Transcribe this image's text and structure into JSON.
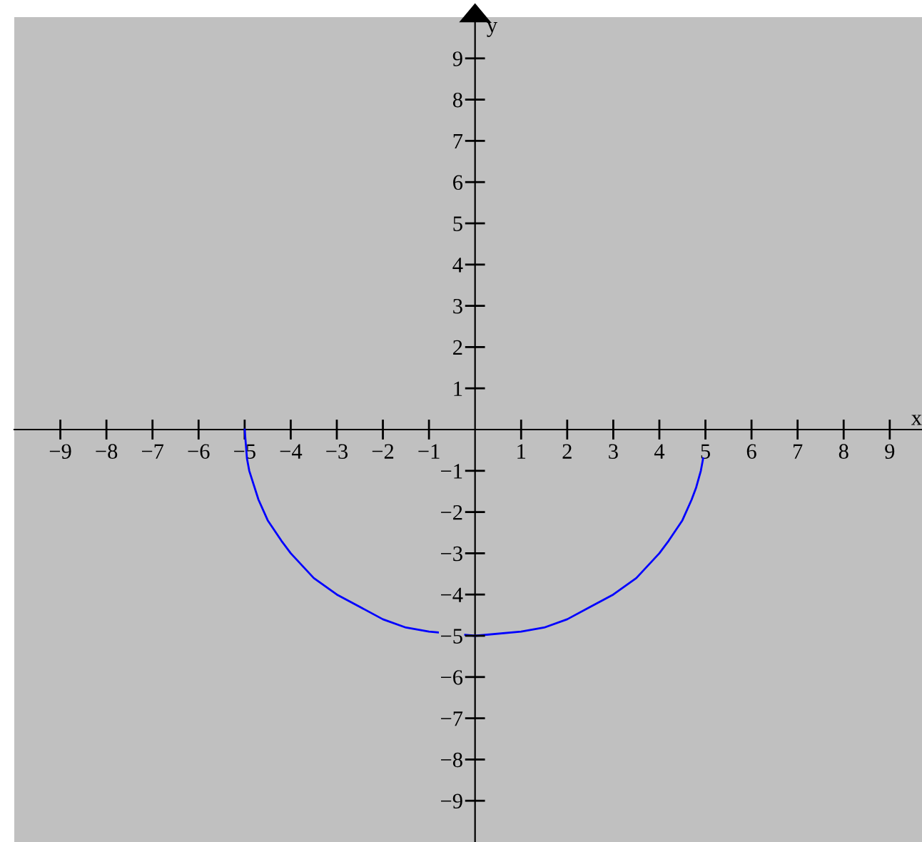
{
  "chart_data": {
    "type": "line",
    "xlabel": "x",
    "ylabel": "y",
    "series": [
      {
        "color": "#0000ff",
        "x": [
          -5,
          -4.95,
          -4.9,
          -4.7,
          -4.5,
          -4.2,
          -4,
          -3.5,
          -3,
          -2.5,
          -2,
          -1.5,
          -1,
          0,
          1,
          1.5,
          2,
          2.5,
          3,
          3.5,
          4,
          4.2,
          4.5,
          4.7,
          4.8,
          4.9,
          4.95
        ],
        "values": [
          0,
          -0.7,
          -1.0,
          -1.7,
          -2.2,
          -2.7,
          -3,
          -3.6,
          -4,
          -4.3,
          -4.6,
          -4.8,
          -4.9,
          -5,
          -4.9,
          -4.8,
          -4.6,
          -4.3,
          -4,
          -3.6,
          -3,
          -2.7,
          -2.2,
          -1.7,
          -1.4,
          -1.0,
          -0.7
        ]
      }
    ],
    "xlim": [
      -10,
      9.7
    ],
    "ylim": [
      -10,
      10
    ],
    "xticks": [
      {
        "value": -9,
        "label": "−9"
      },
      {
        "value": -8,
        "label": "−8"
      },
      {
        "value": -7,
        "label": "−7"
      },
      {
        "value": -6,
        "label": "−6"
      },
      {
        "value": -5,
        "label": "−5"
      },
      {
        "value": -4,
        "label": "−4"
      },
      {
        "value": -3,
        "label": "−3"
      },
      {
        "value": -2,
        "label": "−2"
      },
      {
        "value": -1,
        "label": "−1"
      },
      1,
      2,
      3,
      4,
      5,
      6,
      7,
      8,
      9
    ],
    "yticks": [
      {
        "value": -9,
        "label": "−9"
      },
      {
        "value": -8,
        "label": "−8"
      },
      {
        "value": -7,
        "label": "−7"
      },
      {
        "value": -6,
        "label": "−6"
      },
      {
        "value": -5,
        "label": "−5"
      },
      {
        "value": -4,
        "label": "−4"
      },
      {
        "value": -3,
        "label": "−3"
      },
      {
        "value": -2,
        "label": "−2"
      },
      {
        "value": -1,
        "label": "−1"
      },
      1,
      2,
      3,
      4,
      5,
      6,
      7,
      8,
      9
    ],
    "grid": false,
    "legend": false,
    "marker": "none",
    "line_style": "solid"
  }
}
